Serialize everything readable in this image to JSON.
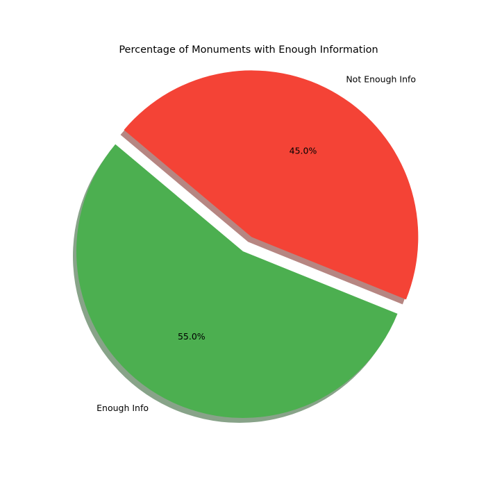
{
  "chart_data": {
    "type": "pie",
    "title": "Percentage of Monuments with Enough Information",
    "start_angle_deg": 140,
    "shadow": true,
    "slices": [
      {
        "label": "Enough Info",
        "value": 55.0,
        "pct_label": "55.0%",
        "color": "#4caf50",
        "explode": 0
      },
      {
        "label": "Not Enough Info",
        "value": 45.0,
        "pct_label": "45.0%",
        "color": "#f44336",
        "explode": 0.1
      }
    ]
  }
}
